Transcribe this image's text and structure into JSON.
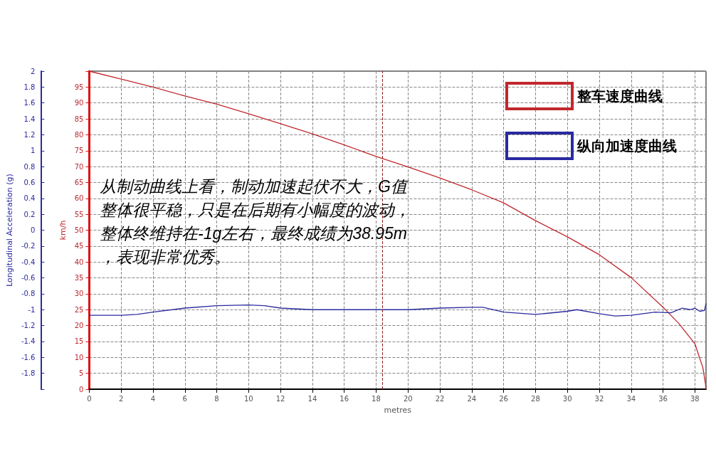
{
  "chart_data": {
    "type": "line",
    "xlabel": "metres",
    "ylabel": "km/h",
    "y2label": "Longitudinal Acceleration (g)",
    "annotations": [
      "从制动曲线上看，制动加速起伏不大，G值整体很平稳，只是在后期有小幅度的波动，整体终维持在-1g左右，最终成绩为38.95m，表现非常优秀。"
    ],
    "series": [
      {
        "name": "整车速度曲线",
        "color": "#c0282d",
        "x": [
          0,
          2,
          4,
          6,
          8,
          10,
          12,
          14,
          16,
          18,
          20,
          22,
          24,
          26,
          28,
          30,
          32,
          34,
          36,
          37,
          38,
          38.5,
          38.67,
          38.7
        ],
        "values": [
          100,
          97.5,
          95,
          92.2,
          89.6,
          86.6,
          83.5,
          80.3,
          76.8,
          73.2,
          69.9,
          66.4,
          62.7,
          58.6,
          53,
          47.9,
          42.3,
          35.1,
          25.8,
          20.6,
          14.3,
          6.8,
          1.5,
          0
        ]
      },
      {
        "name": "纵向加速度曲线",
        "color": "#2a2aa0",
        "axis": "y2",
        "x": [
          0,
          2,
          3,
          4,
          6,
          8,
          10,
          11,
          12,
          14,
          16,
          18,
          20,
          22,
          24,
          24.7,
          26,
          28,
          30,
          30.6,
          32,
          33,
          34,
          35.5,
          36.5,
          37.2,
          37.7,
          38,
          38.3,
          38.6,
          38.7
        ],
        "values": [
          -1.07,
          -1.07,
          -1.06,
          -1.03,
          -0.98,
          -0.95,
          -0.94,
          -0.95,
          -0.98,
          -1,
          -1,
          -1,
          -1,
          -0.98,
          -0.97,
          -0.97,
          -1.03,
          -1.06,
          -1.02,
          -1,
          -1.05,
          -1.08,
          -1.07,
          -1.03,
          -1.04,
          -0.98,
          -1,
          -0.98,
          -1.02,
          -1.01,
          -0.92
        ]
      }
    ],
    "xlim": [
      0,
      38.7
    ],
    "xticks": [
      0,
      2,
      4,
      6,
      8,
      10,
      12,
      14,
      16,
      18,
      20,
      22,
      24,
      26,
      28,
      30,
      32,
      34,
      36,
      38
    ],
    "ylim": [
      0,
      100
    ],
    "yticks": [
      0,
      5,
      10,
      15,
      20,
      25,
      30,
      35,
      40,
      45,
      50,
      55,
      60,
      65,
      70,
      75,
      80,
      85,
      90,
      95
    ],
    "y2lim": [
      -2,
      2
    ],
    "y2ticks": [
      -1.8,
      -1.6,
      -1.4,
      -1.2,
      -1,
      -0.8,
      -0.6,
      -0.4,
      -0.2,
      0,
      0.2,
      0.4,
      0.6,
      0.8,
      1,
      1.2,
      1.4,
      1.6,
      1.8,
      2
    ],
    "ref_lines": [
      {
        "axis": "x",
        "value": 18.4,
        "color": "#8b1a1a",
        "line_style": "dashed"
      }
    ],
    "grid": true,
    "legend": "top right",
    "marker": "none"
  }
}
